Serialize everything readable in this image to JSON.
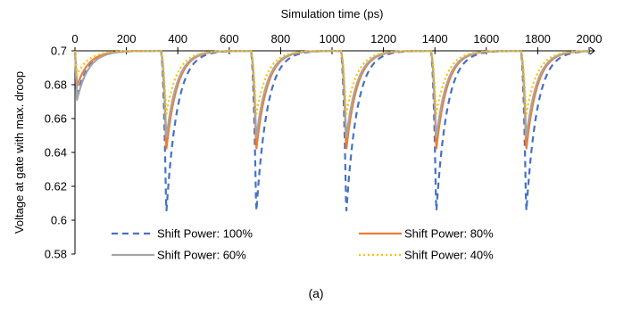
{
  "chart_data": {
    "type": "line",
    "xlabel": "Simulation time (ps)",
    "ylabel": "Voltage at gate with max. droop",
    "caption": "(a)",
    "xlim": [
      0,
      2000
    ],
    "ylim": [
      0.58,
      0.7
    ],
    "x_ticks": [
      0,
      200,
      400,
      600,
      800,
      1000,
      1200,
      1400,
      1600,
      1800,
      2000
    ],
    "y_ticks": [
      0.58,
      0.6,
      0.62,
      0.64,
      0.66,
      0.68,
      0.7
    ],
    "x_tick_labels": [
      "0",
      "200",
      "400",
      "600",
      "800",
      "1000",
      "1200",
      "1400",
      "1600",
      "1800",
      "2000"
    ],
    "y_tick_labels": [
      "0.58",
      "0.6",
      "0.62",
      "0.64",
      "0.66",
      "0.68",
      "0.7"
    ],
    "x_axis_position": "top",
    "grid": false,
    "legend_position": "bottom",
    "droop_times_ps": [
      355,
      705,
      1055,
      1405,
      1755
    ],
    "series": [
      {
        "name": "Shift Power: 100%",
        "color": "#4472C4",
        "dash": "dashed",
        "initial_min": 0.674,
        "droop_min": 0.6035
      },
      {
        "name": "Shift Power: 80%",
        "color": "#ED7D31",
        "dash": "solid",
        "initial_min": 0.679,
        "droop_min": 0.641
      },
      {
        "name": "Shift Power: 60%",
        "color": "#A5A5A5",
        "dash": "solid",
        "initial_min": 0.671,
        "droop_min": 0.648
      },
      {
        "name": "Shift Power: 40%",
        "color": "#FFC000",
        "dash": "dotted",
        "initial_min": 0.686,
        "droop_min": 0.662
      }
    ]
  }
}
